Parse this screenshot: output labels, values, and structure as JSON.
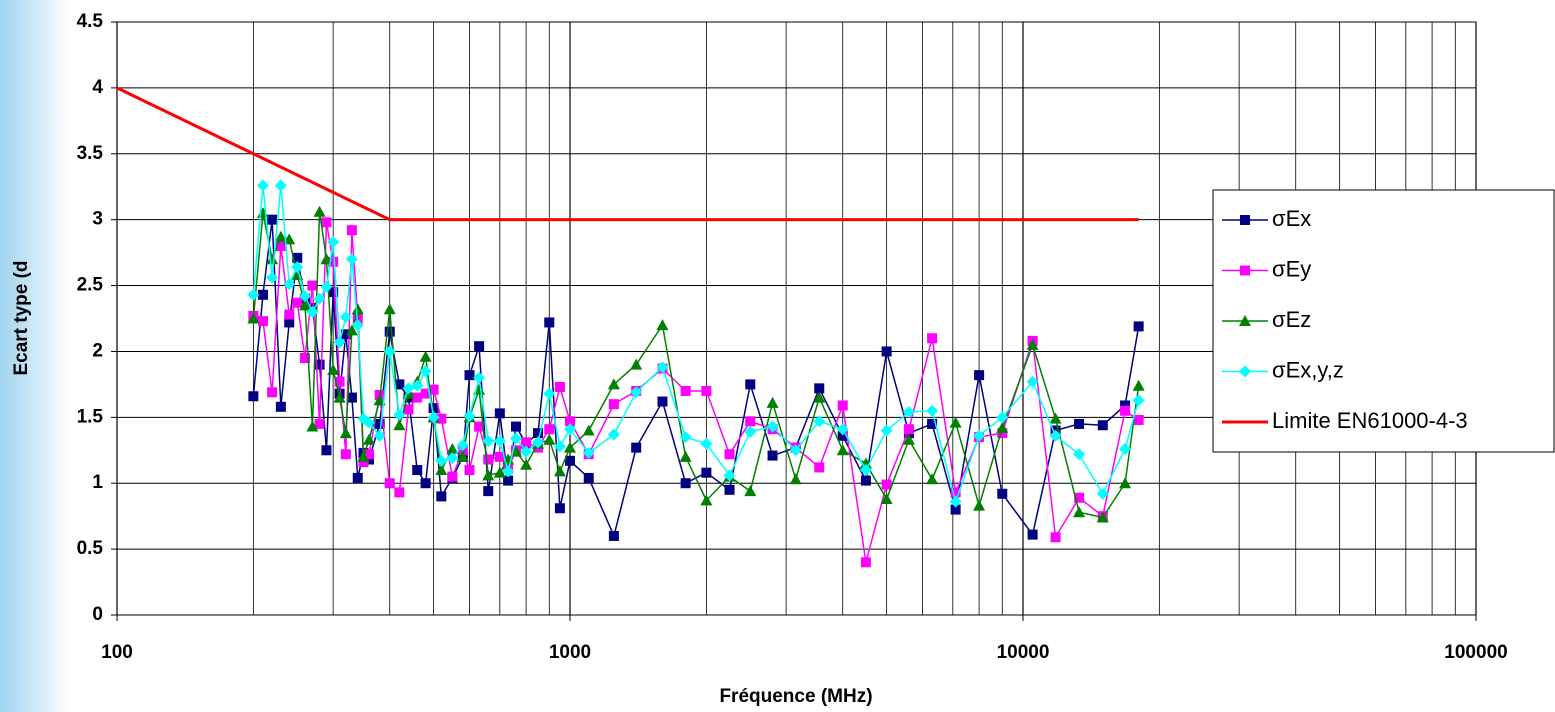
{
  "chart_data": {
    "type": "line",
    "ylabel": "Ecart type (d",
    "xlabel": "Fréquence (MHz)",
    "xscale": "log",
    "xlim": [
      100,
      100000
    ],
    "xticks": [
      100,
      1000,
      10000,
      100000
    ],
    "xminorticks": [
      200,
      300,
      400,
      500,
      600,
      700,
      800,
      900,
      2000,
      3000,
      4000,
      5000,
      6000,
      7000,
      8000,
      9000,
      20000,
      30000,
      40000,
      50000,
      60000,
      70000,
      80000,
      90000
    ],
    "ylim": [
      0,
      4.5
    ],
    "yticks": [
      0,
      0.5,
      1,
      1.5,
      2,
      2.5,
      3,
      3.5,
      4,
      4.5
    ],
    "grid": true,
    "legend": "right",
    "series": [
      {
        "name": "σEx",
        "color": "#000080",
        "marker": "square",
        "x": [
          200,
          210,
          220,
          230,
          240,
          250,
          260,
          270,
          280,
          290,
          300,
          310,
          320,
          330,
          340,
          350,
          360,
          380,
          400,
          420,
          440,
          460,
          480,
          500,
          520,
          550,
          580,
          600,
          630,
          660,
          700,
          730,
          760,
          800,
          850,
          900,
          950,
          1000,
          1100,
          1250,
          1400,
          1600,
          1800,
          2000,
          2250,
          2500,
          2800,
          3150,
          3550,
          4000,
          4500,
          5000,
          5600,
          6300,
          7100,
          8000,
          9000,
          10500,
          11800,
          13300,
          15000,
          16800,
          18000
        ],
        "values": [
          1.66,
          2.43,
          3.0,
          1.58,
          2.22,
          2.71,
          2.4,
          2.33,
          1.9,
          1.25,
          2.45,
          1.68,
          2.13,
          1.65,
          1.04,
          1.23,
          1.18,
          1.45,
          2.15,
          1.75,
          1.65,
          1.1,
          1.0,
          1.57,
          0.9,
          1.04,
          1.2,
          1.82,
          2.04,
          0.94,
          1.53,
          1.02,
          1.43,
          1.3,
          1.38,
          2.22,
          0.81,
          1.17,
          1.04,
          0.6,
          1.27,
          1.62,
          1.0,
          1.08,
          0.95,
          1.75,
          1.21,
          1.27,
          1.72,
          1.36,
          1.02,
          2.0,
          1.38,
          1.45,
          0.8,
          1.82,
          0.92,
          0.61,
          1.4,
          1.45,
          1.44,
          1.59,
          2.19
        ]
      },
      {
        "name": "σEy",
        "color": "#ff00ff",
        "marker": "square",
        "x": [
          200,
          210,
          220,
          230,
          240,
          250,
          260,
          270,
          280,
          290,
          300,
          310,
          320,
          330,
          340,
          350,
          360,
          380,
          400,
          420,
          440,
          460,
          480,
          500,
          520,
          550,
          580,
          600,
          630,
          660,
          700,
          730,
          760,
          800,
          850,
          900,
          950,
          1000,
          1100,
          1250,
          1400,
          1600,
          1800,
          2000,
          2250,
          2500,
          2800,
          3150,
          3550,
          4000,
          4500,
          5000,
          5600,
          6300,
          7100,
          8000,
          9000,
          10500,
          11800,
          13300,
          15000,
          16800,
          18000
        ],
        "values": [
          2.27,
          2.23,
          1.69,
          2.8,
          2.28,
          2.37,
          1.95,
          2.5,
          1.45,
          2.98,
          2.68,
          1.77,
          1.22,
          2.92,
          2.25,
          1.16,
          1.22,
          1.67,
          1.0,
          0.93,
          1.56,
          1.65,
          1.68,
          1.71,
          1.49,
          1.05,
          1.25,
          1.1,
          1.43,
          1.18,
          1.2,
          1.11,
          1.25,
          1.31,
          1.27,
          1.41,
          1.73,
          1.47,
          1.22,
          1.6,
          1.7,
          1.87,
          1.7,
          1.7,
          1.22,
          1.47,
          1.41,
          1.27,
          1.12,
          1.59,
          0.4,
          0.99,
          1.41,
          2.1,
          0.93,
          1.35,
          1.38,
          2.08,
          0.59,
          0.89,
          0.75,
          1.55,
          1.48
        ]
      },
      {
        "name": "σEz",
        "color": "#008000",
        "marker": "triangle",
        "x": [
          200,
          210,
          220,
          230,
          240,
          250,
          260,
          270,
          280,
          290,
          300,
          310,
          320,
          330,
          340,
          350,
          360,
          380,
          400,
          420,
          440,
          460,
          480,
          500,
          520,
          550,
          580,
          600,
          630,
          660,
          700,
          730,
          760,
          800,
          850,
          900,
          950,
          1000,
          1100,
          1250,
          1400,
          1600,
          1800,
          2000,
          2250,
          2500,
          2800,
          3150,
          3550,
          4000,
          4500,
          5000,
          5600,
          6300,
          7100,
          8000,
          9000,
          10500,
          11800,
          13300,
          15000,
          16800,
          18000
        ],
        "values": [
          2.25,
          3.05,
          2.7,
          2.87,
          2.85,
          2.58,
          2.35,
          1.43,
          3.06,
          2.7,
          1.86,
          1.65,
          1.38,
          2.16,
          2.32,
          1.2,
          1.33,
          1.63,
          2.32,
          1.44,
          1.68,
          1.77,
          1.96,
          1.5,
          1.1,
          1.26,
          1.2,
          1.5,
          1.71,
          1.06,
          1.08,
          1.18,
          1.24,
          1.14,
          1.3,
          1.33,
          1.09,
          1.27,
          1.4,
          1.75,
          1.9,
          2.2,
          1.2,
          0.87,
          1.05,
          0.94,
          1.61,
          1.03,
          1.65,
          1.25,
          1.15,
          0.88,
          1.33,
          1.03,
          1.46,
          0.83,
          1.42,
          2.05,
          1.49,
          0.78,
          0.74,
          1.0,
          1.74
        ]
      },
      {
        "name": "σEx,y,z",
        "color": "#00ffff",
        "marker": "diamond",
        "x": [
          200,
          210,
          220,
          230,
          240,
          250,
          260,
          270,
          280,
          290,
          300,
          310,
          320,
          330,
          340,
          350,
          360,
          380,
          400,
          420,
          440,
          460,
          480,
          500,
          520,
          550,
          580,
          600,
          630,
          660,
          700,
          730,
          760,
          800,
          850,
          900,
          950,
          1000,
          1100,
          1250,
          1400,
          1600,
          1800,
          2000,
          2250,
          2500,
          2800,
          3150,
          3550,
          4000,
          4500,
          5000,
          5600,
          6300,
          7100,
          8000,
          9000,
          10500,
          11800,
          13300,
          15000,
          16800,
          18000
        ],
        "values": [
          2.43,
          3.26,
          2.56,
          3.26,
          2.51,
          2.64,
          2.42,
          2.3,
          2.4,
          2.49,
          2.83,
          2.07,
          2.26,
          2.7,
          2.2,
          1.49,
          1.46,
          1.36,
          2.0,
          1.52,
          1.72,
          1.74,
          1.85,
          1.5,
          1.17,
          1.19,
          1.29,
          1.51,
          1.8,
          1.32,
          1.32,
          1.09,
          1.34,
          1.24,
          1.31,
          1.68,
          1.28,
          1.41,
          1.23,
          1.37,
          1.69,
          1.88,
          1.35,
          1.3,
          1.06,
          1.39,
          1.43,
          1.25,
          1.47,
          1.41,
          1.1,
          1.4,
          1.54,
          1.55,
          0.86,
          1.36,
          1.5,
          1.77,
          1.36,
          1.22,
          0.92,
          1.26,
          1.63
        ]
      },
      {
        "name": "Limite EN61000-4-3",
        "color": "#ff0000",
        "marker": "none",
        "x": [
          100,
          400,
          18000
        ],
        "values": [
          4,
          3,
          3
        ]
      }
    ]
  }
}
